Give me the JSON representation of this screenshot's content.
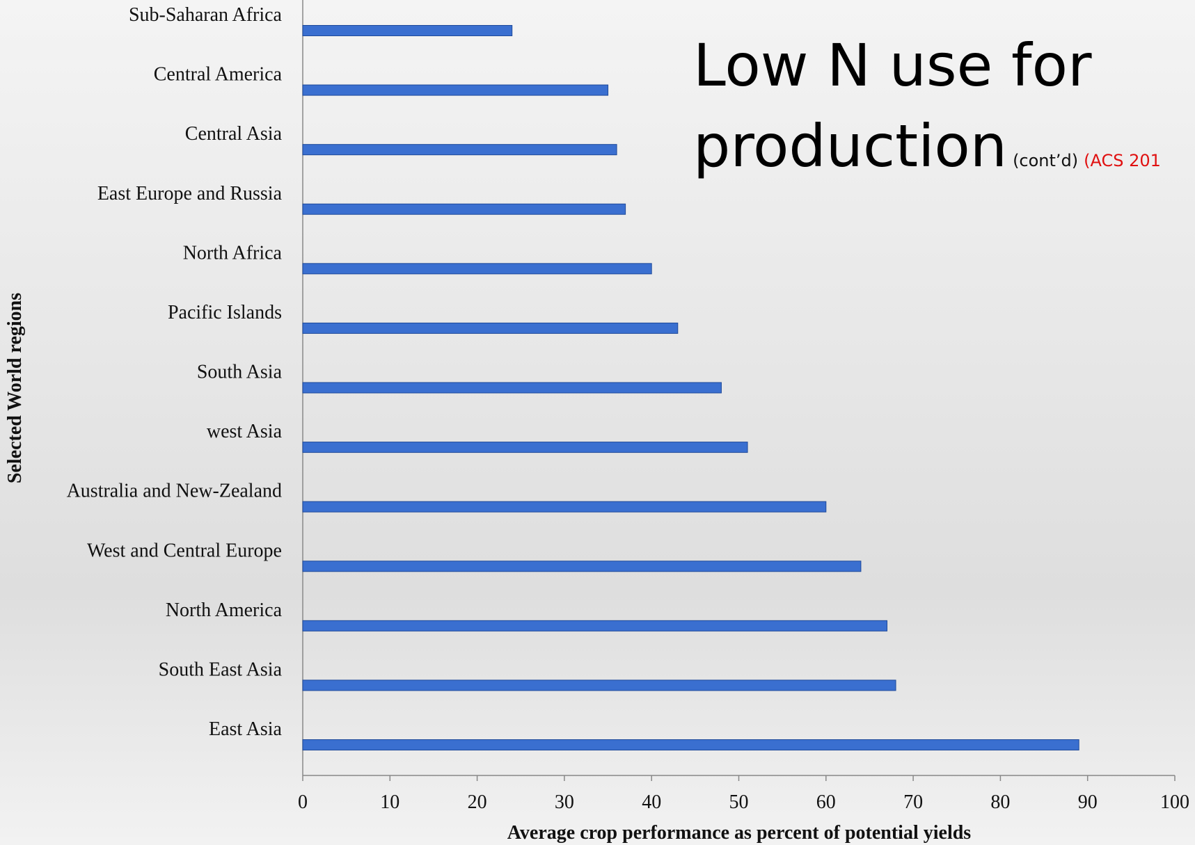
{
  "chart_data": {
    "type": "bar",
    "orientation": "horizontal",
    "title_lines": [
      "Low N use for",
      "production"
    ],
    "subtitle": "(cont’d)",
    "source": "(ACS 201",
    "xlabel": "Average crop performance as percent of potential yields",
    "ylabel": "Selected World regions",
    "categories": [
      "Sub-Saharan Africa",
      "Central America",
      "Central Asia",
      "East Europe and Russia",
      "North Africa",
      "Pacific Islands",
      "South Asia",
      "west Asia",
      "Australia and New-Zealand",
      "West and Central Europe",
      "North America",
      "South East Asia",
      "East Asia"
    ],
    "values": [
      24,
      35,
      36,
      37,
      40,
      43,
      48,
      51,
      60,
      64,
      67,
      68,
      89
    ],
    "color": "#3a6fd0",
    "xlim": [
      0,
      100
    ],
    "xticks": [
      0,
      10,
      20,
      30,
      40,
      50,
      60,
      70,
      80,
      90,
      100
    ],
    "grid": false
  }
}
